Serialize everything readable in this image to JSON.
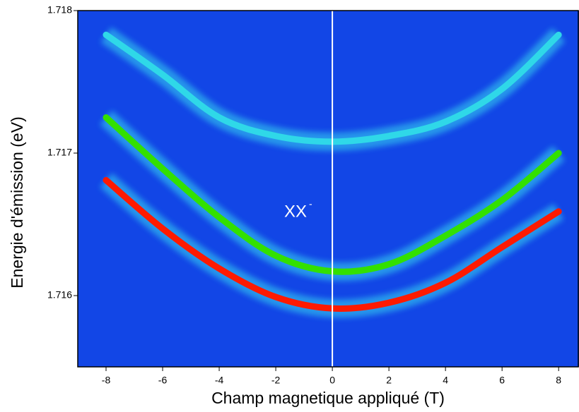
{
  "chart_data": {
    "type": "line",
    "xlabel": "Champ magnetique appliqué (T)",
    "ylabel": "Energie d'émission (eV)",
    "annotation": {
      "text": "XX",
      "sup": "-"
    },
    "vline": 0,
    "x": [
      -8,
      -6,
      -4,
      -2,
      0,
      2,
      4,
      6,
      8
    ],
    "series": [
      {
        "color": "#ff1a00",
        "values": [
          1.71681,
          1.71647,
          1.71619,
          1.71599,
          1.71591,
          1.71595,
          1.71609,
          1.71634,
          1.71659
        ]
      },
      {
        "color": "#33e000",
        "values": [
          1.71725,
          1.71689,
          1.71655,
          1.71628,
          1.71617,
          1.71622,
          1.71642,
          1.71667,
          1.717
        ]
      },
      {
        "color": "#2fd8e8",
        "values": [
          1.71783,
          1.71755,
          1.71725,
          1.71712,
          1.71708,
          1.71712,
          1.71722,
          1.71745,
          1.71783
        ]
      }
    ],
    "xlim": [
      -9,
      8.72
    ],
    "ylim": [
      1.7155,
      1.718
    ],
    "xticks": [
      -8,
      -6,
      -4,
      -2,
      0,
      2,
      4,
      6,
      8
    ],
    "yticks": [
      1.716,
      1.717,
      1.718
    ]
  }
}
